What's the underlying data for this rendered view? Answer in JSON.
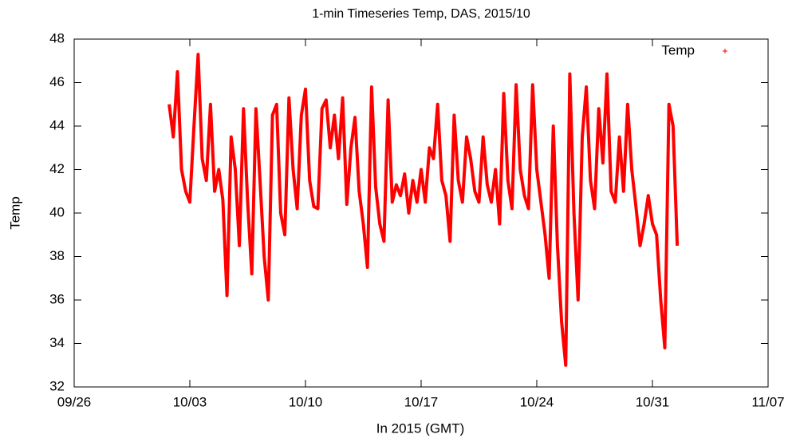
{
  "chart_data": {
    "type": "line",
    "title": "1-min Timeseries Temp, DAS, 2015/10",
    "x_label": "In 2015 (GMT)",
    "y_label": "Temp",
    "legend_position": "upper right",
    "xlim": [
      "2015-09-26T00:00",
      "2015-11-07T00:00"
    ],
    "xticks": [
      {
        "value": "2015-09-26T00:00",
        "label": "09/26"
      },
      {
        "value": "2015-10-03T00:00",
        "label": "10/03"
      },
      {
        "value": "2015-10-10T00:00",
        "label": "10/10"
      },
      {
        "value": "2015-10-17T00:00",
        "label": "10/17"
      },
      {
        "value": "2015-10-24T00:00",
        "label": "10/24"
      },
      {
        "value": "2015-10-31T00:00",
        "label": "10/31"
      },
      {
        "value": "2015-11-07T00:00",
        "label": "11/07"
      }
    ],
    "ylim": [
      32,
      48
    ],
    "yticks": [
      32,
      34,
      36,
      38,
      40,
      42,
      44,
      46,
      48
    ],
    "x": [
      "2015-10-01T18:00",
      "2015-10-02T00:00",
      "2015-10-02T06:00",
      "2015-10-02T12:00",
      "2015-10-02T18:00",
      "2015-10-03T00:00",
      "2015-10-03T06:00",
      "2015-10-03T12:00",
      "2015-10-03T18:00",
      "2015-10-04T00:00",
      "2015-10-04T06:00",
      "2015-10-04T12:00",
      "2015-10-04T18:00",
      "2015-10-05T00:00",
      "2015-10-05T06:00",
      "2015-10-05T12:00",
      "2015-10-05T18:00",
      "2015-10-06T00:00",
      "2015-10-06T06:00",
      "2015-10-06T12:00",
      "2015-10-06T18:00",
      "2015-10-07T00:00",
      "2015-10-07T06:00",
      "2015-10-07T12:00",
      "2015-10-07T18:00",
      "2015-10-08T00:00",
      "2015-10-08T06:00",
      "2015-10-08T12:00",
      "2015-10-08T18:00",
      "2015-10-09T00:00",
      "2015-10-09T06:00",
      "2015-10-09T12:00",
      "2015-10-09T18:00",
      "2015-10-10T00:00",
      "2015-10-10T06:00",
      "2015-10-10T12:00",
      "2015-10-10T18:00",
      "2015-10-11T00:00",
      "2015-10-11T06:00",
      "2015-10-11T12:00",
      "2015-10-11T18:00",
      "2015-10-12T00:00",
      "2015-10-12T06:00",
      "2015-10-12T12:00",
      "2015-10-12T18:00",
      "2015-10-13T00:00",
      "2015-10-13T06:00",
      "2015-10-13T12:00",
      "2015-10-13T18:00",
      "2015-10-14T00:00",
      "2015-10-14T06:00",
      "2015-10-14T12:00",
      "2015-10-14T18:00",
      "2015-10-15T00:00",
      "2015-10-15T06:00",
      "2015-10-15T12:00",
      "2015-10-15T18:00",
      "2015-10-16T00:00",
      "2015-10-16T06:00",
      "2015-10-16T12:00",
      "2015-10-16T18:00",
      "2015-10-17T00:00",
      "2015-10-17T06:00",
      "2015-10-17T12:00",
      "2015-10-17T18:00",
      "2015-10-18T00:00",
      "2015-10-18T06:00",
      "2015-10-18T12:00",
      "2015-10-18T18:00",
      "2015-10-19T00:00",
      "2015-10-19T06:00",
      "2015-10-19T12:00",
      "2015-10-19T18:00",
      "2015-10-20T00:00",
      "2015-10-20T06:00",
      "2015-10-20T12:00",
      "2015-10-20T18:00",
      "2015-10-21T00:00",
      "2015-10-21T06:00",
      "2015-10-21T12:00",
      "2015-10-21T18:00",
      "2015-10-22T00:00",
      "2015-10-22T06:00",
      "2015-10-22T12:00",
      "2015-10-22T18:00",
      "2015-10-23T00:00",
      "2015-10-23T06:00",
      "2015-10-23T12:00",
      "2015-10-23T18:00",
      "2015-10-24T00:00",
      "2015-10-24T06:00",
      "2015-10-24T12:00",
      "2015-10-24T18:00",
      "2015-10-25T00:00",
      "2015-10-25T06:00",
      "2015-10-25T12:00",
      "2015-10-25T18:00",
      "2015-10-26T00:00",
      "2015-10-26T06:00",
      "2015-10-26T12:00",
      "2015-10-26T18:00",
      "2015-10-27T00:00",
      "2015-10-27T06:00",
      "2015-10-27T12:00",
      "2015-10-27T18:00",
      "2015-10-28T00:00",
      "2015-10-28T06:00",
      "2015-10-28T12:00",
      "2015-10-28T18:00",
      "2015-10-29T00:00",
      "2015-10-29T06:00",
      "2015-10-29T12:00",
      "2015-10-29T18:00",
      "2015-10-30T00:00",
      "2015-10-30T06:00",
      "2015-10-30T12:00",
      "2015-10-30T18:00",
      "2015-10-31T00:00",
      "2015-10-31T06:00",
      "2015-10-31T12:00",
      "2015-10-31T18:00",
      "2015-11-01T00:00",
      "2015-11-01T06:00",
      "2015-11-01T12:00"
    ],
    "series": [
      {
        "name": "Temp",
        "color": "#ff0000",
        "values": [
          45,
          43.5,
          46.5,
          42,
          41,
          40.5,
          44,
          47.3,
          42.5,
          41.5,
          45,
          41,
          42,
          40.6,
          36.2,
          43.5,
          42,
          38.5,
          44.8,
          40.5,
          37.2,
          44.8,
          41.5,
          38,
          36,
          44.5,
          45,
          40,
          39,
          45.3,
          42,
          40.2,
          44.5,
          45.7,
          41.5,
          40.3,
          40.2,
          44.8,
          45.2,
          43,
          44.5,
          42.5,
          45.3,
          40.4,
          43,
          44.4,
          41,
          39.5,
          37.5,
          45.8,
          41.2,
          39.5,
          38.7,
          45.2,
          40.5,
          41.3,
          40.8,
          41.8,
          40,
          41.5,
          40.5,
          42,
          40.5,
          43,
          42.5,
          45,
          41.5,
          40.8,
          38.7,
          44.5,
          41.5,
          40.5,
          43.5,
          42.5,
          41,
          40.5,
          43.5,
          41.3,
          40.5,
          42,
          39.5,
          45.5,
          41.5,
          40.2,
          45.9,
          42,
          40.8,
          40.2,
          45.9,
          42,
          40.5,
          39,
          37,
          44,
          38.5,
          35,
          33,
          46.4,
          40,
          36,
          43.5,
          45.8,
          41.5,
          40.2,
          44.8,
          42.3,
          46.4,
          41,
          40.5,
          43.5,
          41,
          45,
          42,
          40.3,
          38.5,
          39.5,
          40.8,
          39.5,
          39,
          36,
          33.8,
          45,
          44,
          38.5
        ]
      }
    ]
  }
}
